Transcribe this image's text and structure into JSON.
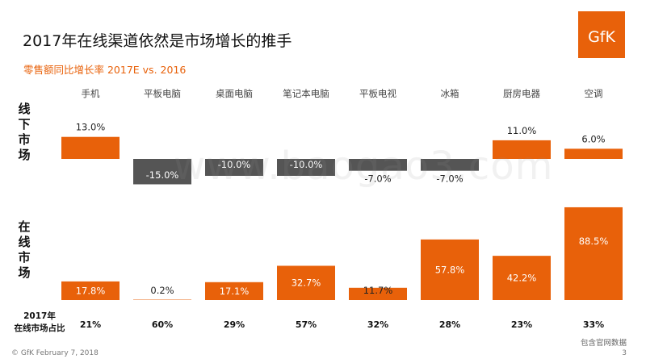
{
  "slide": {
    "title": "2017年在线渠道依然是市场增长的推手",
    "subtitle": "零售额同比增长率 2017E vs. 2016",
    "logo_text": "GfK",
    "offline_label": [
      "线",
      "下",
      "市",
      "场"
    ],
    "online_label": [
      "在",
      "线",
      "市",
      "场"
    ],
    "share_title": [
      "2017年",
      "在线市场占比"
    ],
    "source": "包含官网数据",
    "footer": "© GfK February 7, 2018",
    "page_number": "3",
    "watermark": "www.baogao3.com"
  },
  "colors": {
    "positive": "#e8610a",
    "negative": "#555555",
    "title": "#111111",
    "subtitle": "#e8610a"
  },
  "chart_data": [
    {
      "type": "bar",
      "name": "线下市场",
      "categories": [
        "手机",
        "平板电脑",
        "桌面电脑",
        "笔记本电脑",
        "平板电视",
        "冰箱",
        "厨房电器",
        "空调"
      ],
      "values": [
        13.0,
        -15.0,
        -10.0,
        -10.0,
        -7.0,
        -7.0,
        11.0,
        6.0
      ],
      "labels": [
        "13.0%",
        "-15.0%",
        "-10.0%",
        "-10.0%",
        "-7.0%",
        "-7.0%",
        "11.0%",
        "6.0%"
      ]
    },
    {
      "type": "bar",
      "name": "在线市场",
      "categories": [
        "手机",
        "平板电脑",
        "桌面电脑",
        "笔记本电脑",
        "平板电视",
        "冰箱",
        "厨房电器",
        "空调"
      ],
      "values": [
        17.8,
        0.2,
        17.1,
        32.7,
        11.7,
        57.8,
        42.2,
        88.5
      ],
      "labels": [
        "17.8%",
        "0.2%",
        "17.1%",
        "32.7%",
        "11.7%",
        "57.8%",
        "42.2%",
        "88.5%"
      ]
    }
  ],
  "online_share": [
    "21%",
    "60%",
    "29%",
    "57%",
    "32%",
    "28%",
    "23%",
    "33%"
  ]
}
